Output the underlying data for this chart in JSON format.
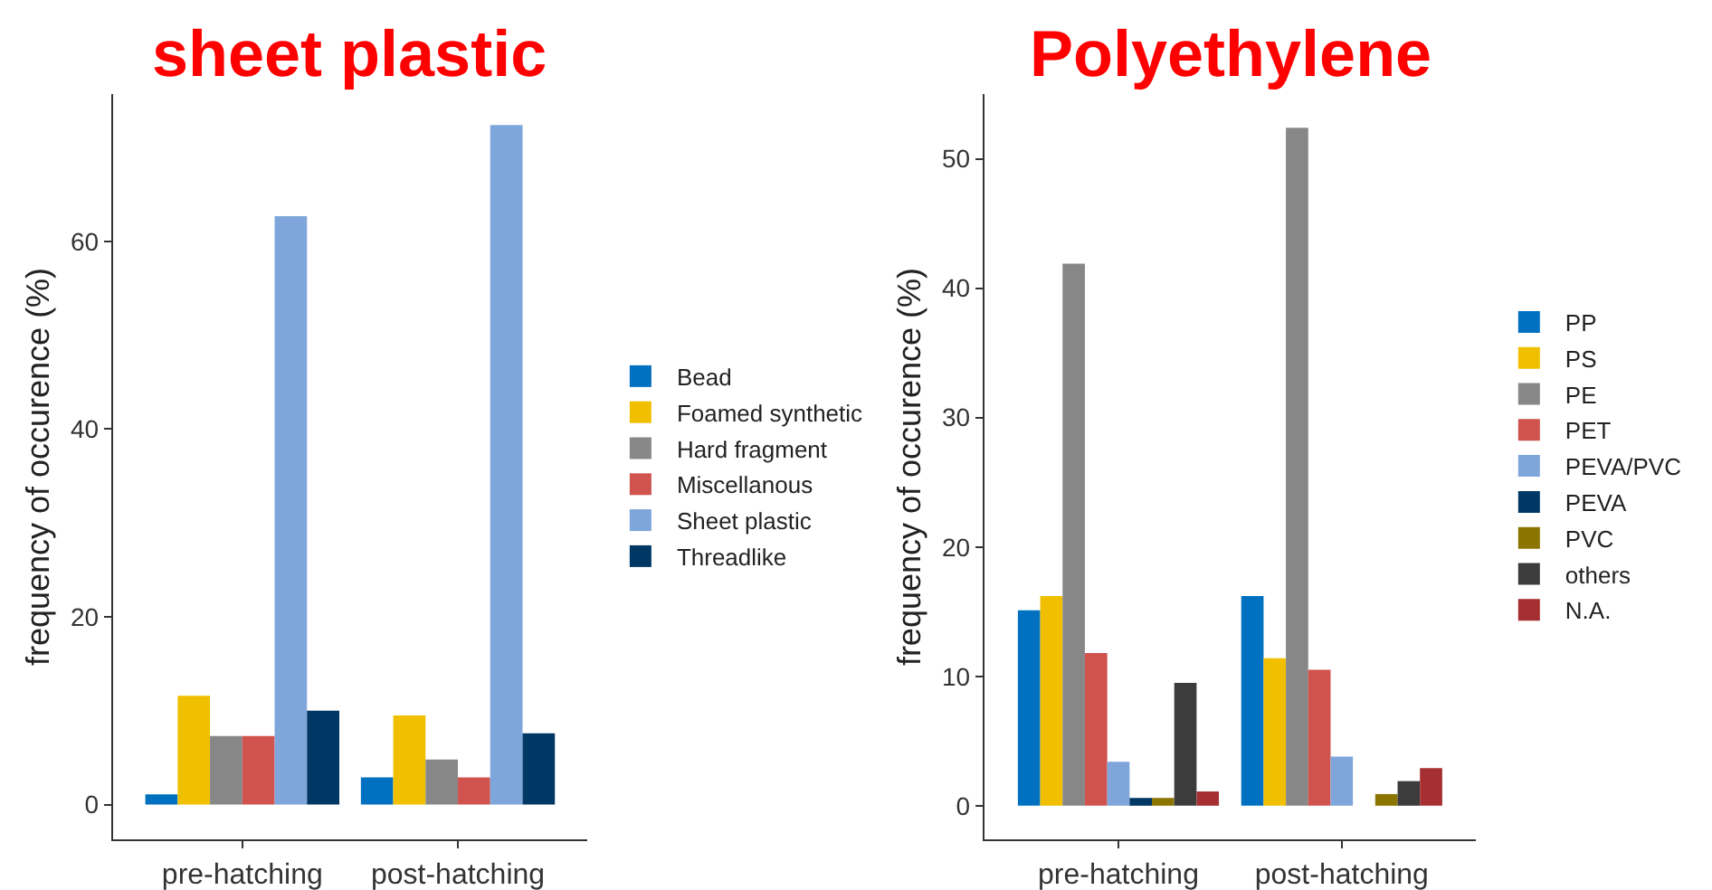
{
  "chart_data": [
    {
      "type": "bar",
      "title": "sheet plastic",
      "ylabel": "frequency of occurence (%)",
      "categories": [
        "pre-hatching",
        "post-hatching"
      ],
      "ylim": [
        -3.7,
        75.7
      ],
      "yticks": [
        0,
        20,
        40,
        60
      ],
      "legend": "right",
      "series": [
        {
          "name": "Bead",
          "color": "#0070c0",
          "values": [
            1.1,
            2.9
          ]
        },
        {
          "name": "Foamed synthetic",
          "color": "#f0c000",
          "values": [
            11.6,
            9.5
          ]
        },
        {
          "name": "Hard fragment",
          "color": "#878787",
          "values": [
            7.3,
            4.8
          ]
        },
        {
          "name": "Miscellanous",
          "color": "#d0534e",
          "values": [
            7.3,
            2.9
          ]
        },
        {
          "name": "Sheet plastic",
          "color": "#7ea6da",
          "values": [
            62.7,
            72.4
          ]
        },
        {
          "name": "Threadlike",
          "color": "#003865",
          "values": [
            10.0,
            7.6
          ]
        }
      ]
    },
    {
      "type": "bar",
      "title": "Polyethylene",
      "ylabel": "frequency of occurence (%)",
      "categories": [
        "pre-hatching",
        "post-hatching"
      ],
      "ylim": [
        -2.6,
        55
      ],
      "yticks": [
        0,
        10,
        20,
        30,
        40,
        50
      ],
      "legend": "right",
      "series": [
        {
          "name": "PP",
          "color": "#0070c0",
          "values": [
            15.1,
            16.2
          ]
        },
        {
          "name": "PS",
          "color": "#f0c000",
          "values": [
            16.2,
            11.4
          ]
        },
        {
          "name": "PE",
          "color": "#878787",
          "values": [
            41.9,
            52.4
          ]
        },
        {
          "name": "PET",
          "color": "#d0534e",
          "values": [
            11.8,
            10.5
          ]
        },
        {
          "name": "PEVA/PVC",
          "color": "#7ea6da",
          "values": [
            3.4,
            3.8
          ]
        },
        {
          "name": "PEVA",
          "color": "#003865",
          "values": [
            0.6,
            0
          ]
        },
        {
          "name": "PVC",
          "color": "#8b7400",
          "values": [
            0.6,
            0.9
          ]
        },
        {
          "name": "others",
          "color": "#3c3c3c",
          "values": [
            9.5,
            1.9
          ]
        },
        {
          "name": "N.A.",
          "color": "#a52f32",
          "values": [
            1.1,
            2.9
          ]
        }
      ]
    }
  ]
}
